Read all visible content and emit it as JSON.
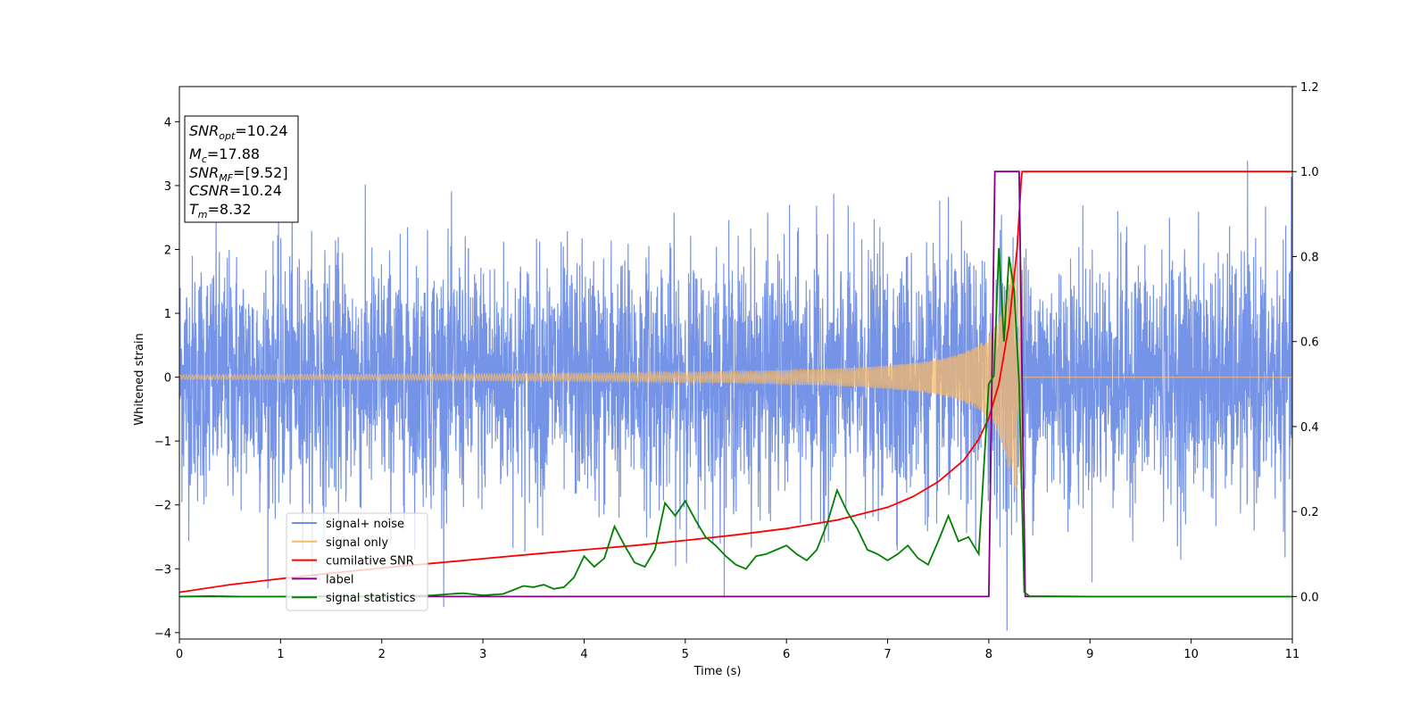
{
  "chart_data": {
    "type": "line",
    "xlabel": "Time (s)",
    "ylabel": "Whitened strain",
    "xlim": [
      0,
      11
    ],
    "ylim": [
      -4.1,
      4.55
    ],
    "y2lim": [
      -0.1,
      1.2
    ],
    "x_ticks": [
      "0",
      "1",
      "2",
      "3",
      "4",
      "5",
      "6",
      "7",
      "8",
      "9",
      "10",
      "11"
    ],
    "y_ticks": [
      "−4",
      "−3",
      "−2",
      "−1",
      "0",
      "1",
      "2",
      "3",
      "4"
    ],
    "y2_ticks": [
      "0.0",
      "0.2",
      "0.4",
      "0.6",
      "0.8",
      "1.0",
      "1.2"
    ],
    "info_box": {
      "snr_opt": "10.24",
      "mc": "17.88",
      "snr_mf": "[9.52]",
      "csnr": "10.24",
      "tm": "8.32"
    },
    "legend": {
      "placement": "lower-left",
      "entries": [
        {
          "label": "signal+ noise",
          "color": "#6f8ee6"
        },
        {
          "label": "signal only",
          "color": "#f5b96b"
        },
        {
          "label": "cumilative SNR",
          "color": "#ff0000"
        },
        {
          "label": "label",
          "color": "#800080"
        },
        {
          "label": "signal statistics",
          "color": "#008000"
        }
      ]
    },
    "series": [
      {
        "name": "signal+ noise",
        "axis": "left",
        "kind": "noise",
        "x_range": [
          0,
          11
        ],
        "std": 1.0,
        "max": 4.18,
        "min": -3.7,
        "color": "#6f8ee6"
      },
      {
        "name": "signal only",
        "axis": "left",
        "kind": "chirp",
        "x_range": [
          0,
          8.35
        ],
        "peak_amplitude": 1.8,
        "peak_time": 8.32,
        "color": "#f5b96b"
      },
      {
        "name": "cumilative SNR",
        "axis": "right",
        "x": [
          0,
          0.5,
          1,
          1.5,
          2,
          2.5,
          3,
          3.5,
          4,
          4.5,
          5,
          5.5,
          6,
          6.5,
          7,
          7.25,
          7.5,
          7.75,
          7.9,
          8.0,
          8.1,
          8.2,
          8.28,
          8.32,
          8.33,
          9,
          10,
          11
        ],
        "y": [
          0.01,
          0.028,
          0.042,
          0.055,
          0.067,
          0.078,
          0.089,
          0.1,
          0.11,
          0.12,
          0.132,
          0.145,
          0.16,
          0.18,
          0.21,
          0.235,
          0.27,
          0.32,
          0.37,
          0.42,
          0.5,
          0.64,
          0.82,
          0.98,
          1.0,
          1.0,
          1.0,
          1.0
        ],
        "color": "#ff0000"
      },
      {
        "name": "label",
        "axis": "right",
        "x": [
          0,
          8.0,
          8.06,
          8.3,
          8.36,
          11
        ],
        "y": [
          0.0,
          0.0,
          1.0,
          1.0,
          0.0,
          0.0
        ],
        "color": "#800080"
      },
      {
        "name": "signal statistics",
        "axis": "right",
        "x": [
          0,
          0.3,
          0.6,
          1.0,
          1.5,
          2.0,
          2.5,
          2.8,
          3.0,
          3.2,
          3.4,
          3.5,
          3.6,
          3.7,
          3.8,
          3.9,
          4.0,
          4.1,
          4.2,
          4.3,
          4.4,
          4.5,
          4.6,
          4.7,
          4.8,
          4.9,
          5.0,
          5.1,
          5.2,
          5.3,
          5.4,
          5.5,
          5.6,
          5.7,
          5.8,
          5.9,
          6.0,
          6.1,
          6.2,
          6.3,
          6.4,
          6.5,
          6.6,
          6.7,
          6.8,
          6.9,
          7.0,
          7.1,
          7.2,
          7.3,
          7.4,
          7.5,
          7.6,
          7.7,
          7.8,
          7.9,
          8.0,
          8.05,
          8.1,
          8.15,
          8.2,
          8.25,
          8.3,
          8.35,
          8.4,
          9.0,
          10.0,
          11.0
        ],
        "y": [
          0.0,
          0.001,
          0.0,
          0.0,
          0.001,
          0.0,
          0.003,
          0.008,
          0.003,
          0.006,
          0.025,
          0.022,
          0.028,
          0.018,
          0.022,
          0.045,
          0.095,
          0.07,
          0.09,
          0.165,
          0.12,
          0.08,
          0.07,
          0.11,
          0.22,
          0.19,
          0.225,
          0.18,
          0.14,
          0.12,
          0.095,
          0.075,
          0.065,
          0.095,
          0.1,
          0.11,
          0.12,
          0.1,
          0.085,
          0.11,
          0.17,
          0.25,
          0.2,
          0.16,
          0.11,
          0.1,
          0.085,
          0.1,
          0.12,
          0.09,
          0.075,
          0.13,
          0.19,
          0.13,
          0.14,
          0.1,
          0.5,
          0.52,
          0.82,
          0.6,
          0.8,
          0.72,
          0.5,
          0.01,
          0.001,
          0.0,
          0.0,
          0.0
        ],
        "color": "#008000"
      }
    ]
  }
}
